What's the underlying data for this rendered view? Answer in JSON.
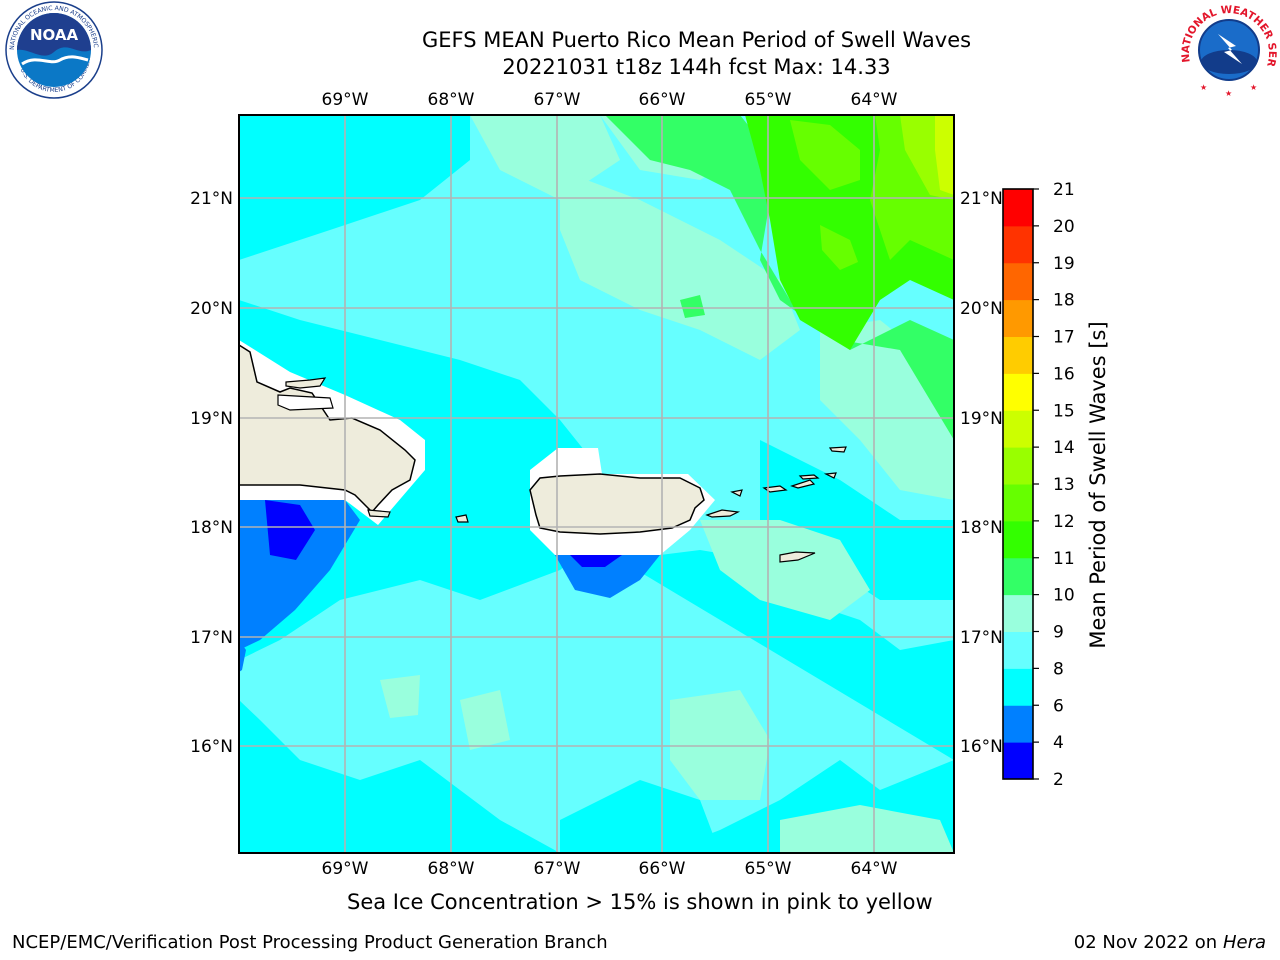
{
  "title": {
    "line1": "GEFS MEAN Puerto Rico Mean Period of Swell Waves",
    "line2": "20221031 t18z 144h fcst   Max: 14.33"
  },
  "map": {
    "lon_labels": [
      "69°W",
      "68°W",
      "67°W",
      "66°W",
      "65°W",
      "64°W"
    ],
    "lat_labels": [
      "21°N",
      "20°N",
      "19°N",
      "18°N",
      "17°N",
      "16°N"
    ],
    "colors": {
      "land": "#eeecdc",
      "masked": "#ffffff",
      "gridline": "#b3b3b3",
      "coast": "#000000"
    }
  },
  "colorbar": {
    "label": "Mean Period of Swell Waves [s]",
    "ticks": [
      "2",
      "4",
      "6",
      "8",
      "9",
      "10",
      "11",
      "12",
      "13",
      "14",
      "15",
      "16",
      "17",
      "18",
      "19",
      "20",
      "21"
    ],
    "colors": [
      "#0000ff",
      "#0080ff",
      "#00ffff",
      "#66ffff",
      "#99ffdd",
      "#33ff66",
      "#33ff00",
      "#66ff00",
      "#99ff00",
      "#ccff00",
      "#ffff00",
      "#ffcc00",
      "#ff9900",
      "#ff6600",
      "#ff3300",
      "#ff0000"
    ]
  },
  "footer": {
    "note": "Sea Ice Concentration > 15% is shown in pink to yellow",
    "credit_left": "NCEP/EMC/Verification Post Processing Product Generation Branch",
    "credit_right_date": "02 Nov 2022 on",
    "credit_right_machine": "Hera"
  },
  "logos": {
    "left": "NOAA",
    "left_ring": "NATIONAL OCEANIC AND ATMOSPHERIC ADMINISTRATION",
    "left_ring_bottom": "U.S. DEPARTMENT OF COMMERCE",
    "right_ring": "NATIONAL WEATHER SERVICE"
  }
}
